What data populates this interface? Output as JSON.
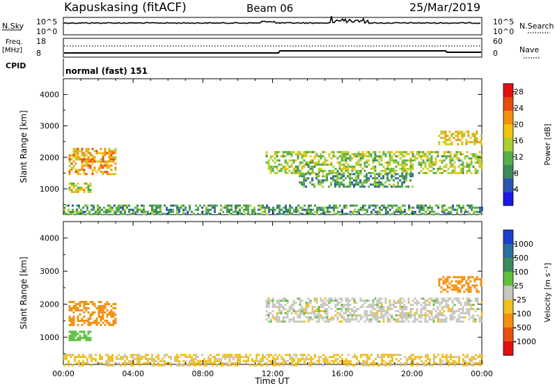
{
  "header": {
    "station": "Kapuskasing (fitACF)",
    "beam": "Beam 06",
    "date": "25/Mar/2019"
  },
  "status_panels": {
    "nsky_label": "N.Sky",
    "nsky_ticks": [
      "10^5",
      "10^0"
    ],
    "nsearch_label": "N.Search",
    "nsearch_ticks": [
      "10^5",
      "10^0"
    ],
    "freq_label": "Freq.",
    "freq_unit": "[MHz]",
    "freq_ticks": [
      "18",
      "8"
    ],
    "nave_label": "Nave",
    "nave_ticks": [
      "60",
      "0"
    ],
    "cpid_label": "CPID",
    "cpid_value": "normal (fast) 151"
  },
  "chart_data": [
    {
      "type": "heatmap",
      "name": "power",
      "ylabel": "Slant Range [km]",
      "xlabel": "Time UT",
      "ylim": [
        180,
        4500
      ],
      "xlim": [
        "00:00",
        "24:00"
      ],
      "y_ticks": [
        "1000",
        "2000",
        "3000",
        "4000"
      ],
      "x_ticks": [
        "00:00",
        "04:00",
        "08:00",
        "12:00",
        "16:00",
        "20:00",
        "00:00"
      ],
      "colorbar_label": "Power [dB]",
      "colorbar_ticks": [
        "4",
        "8",
        "12",
        "16",
        "20",
        "24",
        "28"
      ],
      "colorbar_range": [
        0,
        30
      ],
      "colors": [
        "#1a1ae6",
        "#2b55b0",
        "#3d8a5a",
        "#55b04a",
        "#a8d030",
        "#f2c410",
        "#f29010",
        "#e84a10",
        "#e01010"
      ],
      "echo_regions": [
        {
          "t_start": 0.3,
          "t_end": 3.0,
          "r_start": 1500,
          "r_end": 2300,
          "value": 20
        },
        {
          "t_start": 0.3,
          "t_end": 1.5,
          "r_start": 900,
          "r_end": 1200,
          "value": 16
        },
        {
          "t_start": 11.6,
          "t_end": 24.0,
          "r_start": 1500,
          "r_end": 2200,
          "value": 14
        },
        {
          "t_start": 13.5,
          "t_end": 20.0,
          "r_start": 1050,
          "r_end": 1500,
          "value": 10
        },
        {
          "t_start": 21.5,
          "t_end": 24.0,
          "r_start": 2400,
          "r_end": 2850,
          "value": 18
        },
        {
          "t_start": 0.0,
          "t_end": 24.0,
          "r_start": 180,
          "r_end": 500,
          "value": 10
        }
      ]
    },
    {
      "type": "heatmap",
      "name": "velocity",
      "ylabel": "Slant Range [km]",
      "xlabel": "Time UT",
      "ylim": [
        180,
        4500
      ],
      "xlim": [
        "00:00",
        "24:00"
      ],
      "y_ticks": [
        "1000",
        "2000",
        "3000",
        "4000"
      ],
      "x_ticks": [
        "00:00",
        "04:00",
        "08:00",
        "12:00",
        "16:00",
        "20:00",
        "00:00"
      ],
      "colorbar_label": "Velocity [m s⁻¹]",
      "colorbar_ticks": [
        "1000",
        "500",
        "100",
        "25",
        "-25",
        "-100",
        "-500",
        "-1000"
      ],
      "colors": [
        "#1a3fd0",
        "#2b6fa0",
        "#3a8a5a",
        "#60c040",
        "#c8c8c0",
        "#f2c020",
        "#f29010",
        "#e85010",
        "#e01010"
      ],
      "echo_regions": [
        {
          "t_start": 0.3,
          "t_end": 3.0,
          "r_start": 1400,
          "r_end": 2100,
          "value": -300
        },
        {
          "t_start": 0.3,
          "t_end": 1.5,
          "r_start": 900,
          "r_end": 1200,
          "value": 60
        },
        {
          "t_start": 11.6,
          "t_end": 24.0,
          "r_start": 1500,
          "r_end": 2200,
          "value": 0
        },
        {
          "t_start": 21.5,
          "t_end": 24.0,
          "r_start": 2400,
          "r_end": 2850,
          "value": -400
        },
        {
          "t_start": 0.0,
          "t_end": 24.0,
          "r_start": 180,
          "r_end": 500,
          "value": -40
        }
      ]
    }
  ]
}
